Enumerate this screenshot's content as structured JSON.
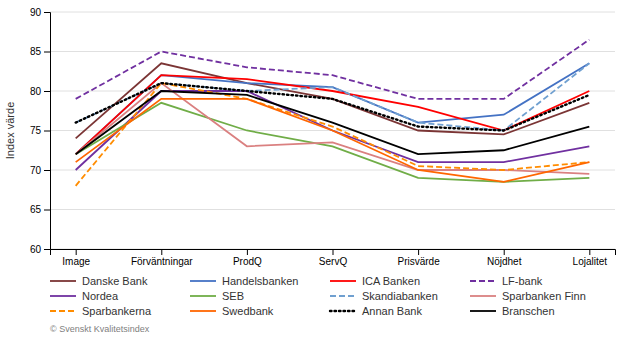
{
  "chart_data": {
    "type": "line",
    "categories": [
      "Image",
      "Förväntningar",
      "ProdQ",
      "ServQ",
      "Prisvärde",
      "Nöjdhet",
      "Lojalitet"
    ],
    "series": [
      {
        "name": "Danske Bank",
        "color": "#7b3535",
        "line_style": "solid",
        "values": [
          74,
          83.5,
          81,
          79,
          75,
          74.5,
          78.5
        ]
      },
      {
        "name": "Handelsbanken",
        "color": "#4472c4",
        "line_style": "solid",
        "values": [
          72,
          82,
          81,
          80.5,
          76,
          77,
          83.5
        ]
      },
      {
        "name": "ICA Banken",
        "color": "#ff0000",
        "line_style": "solid",
        "values": [
          72,
          82,
          81.5,
          80,
          78,
          75,
          80
        ]
      },
      {
        "name": "LF-bank",
        "color": "#7030a0",
        "line_style": "dashed",
        "values": [
          79,
          85,
          83,
          82,
          79,
          79,
          86.5
        ]
      },
      {
        "name": "Nordea",
        "color": "#7030a0",
        "line_style": "solid",
        "values": [
          70,
          80,
          80,
          75,
          71,
          71,
          73
        ]
      },
      {
        "name": "SEB",
        "color": "#70ad47",
        "line_style": "solid",
        "values": [
          72,
          78.5,
          75,
          73,
          69,
          68.5,
          69
        ]
      },
      {
        "name": "Skandiabanken",
        "color": "#70a0d0",
        "line_style": "dashed",
        "values": [
          76,
          81,
          80,
          80.5,
          76,
          75,
          83.5
        ]
      },
      {
        "name": "Sparbanken Finn",
        "color": "#da8080",
        "line_style": "solid",
        "values": [
          72,
          81,
          73,
          73.5,
          70,
          70,
          69.5
        ]
      },
      {
        "name": "Sparbankerna",
        "color": "#ff8c00",
        "line_style": "dashed",
        "values": [
          68,
          81,
          79,
          75.5,
          70.5,
          70,
          71
        ]
      },
      {
        "name": "Swedbank",
        "color": "#ff6600",
        "line_style": "solid",
        "values": [
          71,
          79,
          79,
          75,
          70,
          68.5,
          71
        ]
      },
      {
        "name": "Annan Bank",
        "color": "#000000",
        "line_style": "dotted",
        "values": [
          76,
          81,
          80,
          79,
          75.5,
          75,
          79.5
        ]
      },
      {
        "name": "Branschen",
        "color": "#000000",
        "line_style": "solid",
        "values": [
          72,
          80,
          79.5,
          76,
          72,
          72.5,
          75.5
        ]
      }
    ],
    "ylabel": "Index värde",
    "ylim": [
      60,
      90
    ],
    "yticks": [
      60,
      65,
      70,
      75,
      80,
      85,
      90
    ],
    "grid": true,
    "legend": "bottom",
    "annotations": [
      "© Svenskt Kvalitetsindex"
    ]
  }
}
